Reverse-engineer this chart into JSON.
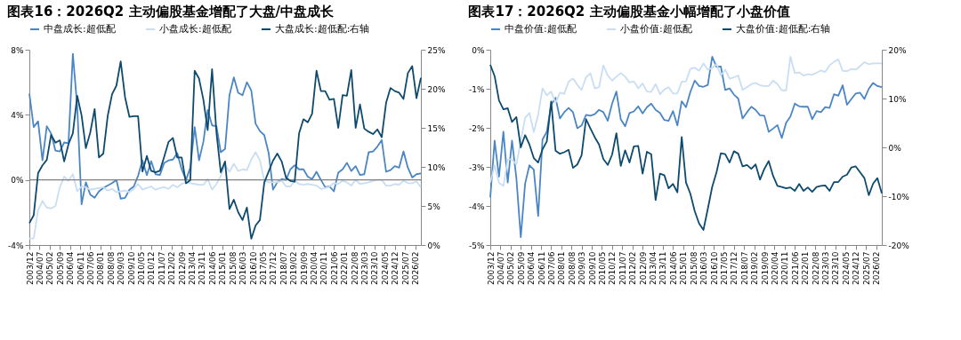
{
  "chart_data": [
    {
      "type": "line",
      "title": "图表16：2026Q2 主动偏股基金增配了大盘/中盘成长",
      "legend": "top",
      "x": [
        "2003-12",
        "2004-03",
        "2004-06",
        "2004-09",
        "2004-12",
        "2005-03",
        "2005-06",
        "2005-09",
        "2005-12",
        "2006-03",
        "2006-06",
        "2006-09",
        "2006-12",
        "2007-03",
        "2007-06",
        "2007-09",
        "2007-12",
        "2008-03",
        "2008-06",
        "2008-09",
        "2008-12",
        "2009-03",
        "2009-06",
        "2009-09",
        "2009-12",
        "2010-03",
        "2010-06",
        "2010-09",
        "2010-12",
        "2011-03",
        "2011-06",
        "2011-09",
        "2011-12",
        "2012-03",
        "2012-06",
        "2012-09",
        "2012-12",
        "2013-03",
        "2013-06",
        "2013-09",
        "2013-12",
        "2014-03",
        "2014-06",
        "2014-09",
        "2014-12",
        "2015-03",
        "2015-06",
        "2015-09",
        "2015-12",
        "2016-03",
        "2016-06",
        "2016-09",
        "2016-12",
        "2017-03",
        "2017-06",
        "2017-09",
        "2017-12",
        "2018-03",
        "2018-06",
        "2018-09",
        "2018-12",
        "2019-03",
        "2019-06",
        "2019-09",
        "2019-12",
        "2020-03",
        "2020-06",
        "2020-09",
        "2020-12",
        "2021-03",
        "2021-06",
        "2021-09",
        "2021-12",
        "2022-03",
        "2022-06",
        "2022-09",
        "2022-12",
        "2023-03",
        "2023-06",
        "2023-09",
        "2023-12",
        "2024-03",
        "2024-06",
        "2024-09",
        "2024-12",
        "2025-03",
        "2025-06",
        "2025-09",
        "2025-12",
        "2026-03",
        "2026-06"
      ],
      "xlim": [
        "2003-12",
        "2026-06"
      ],
      "xticks": [
        {
          "value": "2003-12",
          "label": "2003/12"
        },
        {
          "value": "2004-07",
          "label": "2004/07"
        },
        {
          "value": "2005-02",
          "label": "2005/02"
        },
        {
          "value": "2005-09",
          "label": "2005/09"
        },
        {
          "value": "2006-04",
          "label": "2006/04"
        },
        {
          "value": "2006-11",
          "label": "2006/11"
        },
        {
          "value": "2007-06",
          "label": "2007/06"
        },
        {
          "value": "2008-01",
          "label": "2008/01"
        },
        {
          "value": "2008-08",
          "label": "2008/08"
        },
        {
          "value": "2009-03",
          "label": "2009/03"
        },
        {
          "value": "2009-10",
          "label": "2009/10"
        },
        {
          "value": "2010-05",
          "label": "2010/05"
        },
        {
          "value": "2010-12",
          "label": "2010/12"
        },
        {
          "value": "2011-07",
          "label": "2011/07"
        },
        {
          "value": "2012-02",
          "label": "2012/02"
        },
        {
          "value": "2012-09",
          "label": "2012/09"
        },
        {
          "value": "2013-04",
          "label": "2013/04"
        },
        {
          "value": "2013-11",
          "label": "2013/11"
        },
        {
          "value": "2014-06",
          "label": "2014/06"
        },
        {
          "value": "2015-01",
          "label": "2015/01"
        },
        {
          "value": "2015-08",
          "label": "2015/08"
        },
        {
          "value": "2016-03",
          "label": "2016/03"
        },
        {
          "value": "2016-10",
          "label": "2016/10"
        },
        {
          "value": "2017-05",
          "label": "2017/05"
        },
        {
          "value": "2017-12",
          "label": "2017/12"
        },
        {
          "value": "2018-07",
          "label": "2018/07"
        },
        {
          "value": "2019-02",
          "label": "2019/02"
        },
        {
          "value": "2019-09",
          "label": "2019/09"
        },
        {
          "value": "2020-04",
          "label": "2020/04"
        },
        {
          "value": "2020-11",
          "label": "2020/11"
        },
        {
          "value": "2021-06",
          "label": "2021/06"
        },
        {
          "value": "2022-01",
          "label": "2022/01"
        },
        {
          "value": "2022-08",
          "label": "2022/08"
        },
        {
          "value": "2023-03",
          "label": "2023/03"
        },
        {
          "value": "2023-10",
          "label": "2023/10"
        },
        {
          "value": "2024-05",
          "label": "2024/05"
        },
        {
          "value": "2024-12",
          "label": "2024/12"
        },
        {
          "value": "2025-07",
          "label": "2025/07"
        },
        {
          "value": "2026-02",
          "label": "2026/02"
        }
      ],
      "ylim": [
        -4,
        8
      ],
      "yticks": [
        {
          "value": -4,
          "label": "-4%"
        },
        {
          "value": 0,
          "label": "0%"
        },
        {
          "value": 4,
          "label": "4%"
        },
        {
          "value": 8,
          "label": "8%"
        }
      ],
      "y2lim": [
        0,
        25
      ],
      "y2ticks": [
        {
          "value": 0,
          "label": "0%"
        },
        {
          "value": 5,
          "label": "5%"
        },
        {
          "value": 10,
          "label": "10%"
        },
        {
          "value": 15,
          "label": "15%"
        },
        {
          "value": 20,
          "label": "20%"
        },
        {
          "value": 25,
          "label": "25%"
        }
      ],
      "ref_lines": [
        {
          "axis": "y",
          "value": 0,
          "color": "#808080"
        }
      ],
      "series": [
        {
          "name": "中盘成长:超低配",
          "color": "#4a86c5",
          "values": [
            5.3,
            3.25,
            3.6,
            1.2,
            3.3,
            2.85,
            1.8,
            1.75,
            2.3,
            2.25,
            7.75,
            4.5,
            -1.5,
            -0.15,
            -0.9,
            -1.1,
            -0.7,
            -0.5,
            -0.35,
            -0.2,
            0.0,
            -1.15,
            -1.1,
            -0.6,
            -0.4,
            0.25,
            1.2,
            0.3,
            1.15,
            0.35,
            0.3,
            1.05,
            1.2,
            1.25,
            1.65,
            0.65,
            0.0,
            0.75,
            3.25,
            1.2,
            2.35,
            4.3,
            3.35,
            3.3,
            1.7,
            1.9,
            5.2,
            6.3,
            5.35,
            5.2,
            6.0,
            5.5,
            3.45,
            3.0,
            2.75,
            1.65,
            -0.6,
            -0.15,
            0.05,
            0.0,
            0.65,
            0.9,
            0.65,
            0.65,
            0.2,
            0.05,
            0.5,
            0.0,
            -0.45,
            -0.4,
            -0.7,
            0.45,
            0.65,
            1.05,
            0.55,
            0.85,
            0.3,
            0.35,
            1.7,
            1.75,
            2.05,
            2.45,
            0.5,
            0.6,
            0.85,
            0.75,
            1.75,
            0.75,
            0.15,
            0.35,
            0.4
          ]
        },
        {
          "name": "小盘成长:超低配",
          "color": "#c9def2",
          "values": [
            -3.6,
            -3.6,
            -1.85,
            -1.3,
            -1.7,
            -1.75,
            -1.6,
            -0.45,
            0.2,
            -0.05,
            0.35,
            -0.7,
            -0.4,
            -0.45,
            -0.6,
            -0.55,
            -0.5,
            -0.45,
            -0.65,
            -0.55,
            -0.75,
            -0.7,
            -0.65,
            -0.75,
            -0.55,
            -0.25,
            -0.6,
            -0.5,
            -0.4,
            -0.6,
            -0.5,
            -0.45,
            -0.55,
            -0.3,
            -0.45,
            -0.25,
            -0.15,
            -0.2,
            -0.25,
            -0.3,
            -0.3,
            0.05,
            -0.6,
            -0.25,
            0.25,
            0.9,
            0.5,
            1.0,
            0.55,
            0.65,
            0.6,
            1.25,
            1.7,
            1.2,
            -0.05,
            -0.15,
            -0.15,
            -0.15,
            -0.05,
            -0.4,
            -0.4,
            -0.05,
            -0.25,
            -0.3,
            -0.25,
            -0.3,
            -0.35,
            -0.55,
            -0.5,
            -0.4,
            -0.2,
            -0.25,
            -0.05,
            -0.15,
            -0.35,
            0.0,
            -0.25,
            -0.2,
            -0.15,
            -0.05,
            0.0,
            0.0,
            -0.35,
            -0.35,
            -0.25,
            -0.3,
            -0.05,
            -0.2,
            -0.2,
            -0.1,
            -0.45
          ]
        },
        {
          "name": "大盘成长:超低配:右轴",
          "color": "#0d4a6e",
          "axis": "y2",
          "values": [
            2.8,
            3.8,
            9.2,
            10.2,
            10.9,
            14.1,
            13.1,
            13.4,
            10.7,
            12.9,
            14.3,
            19.1,
            16.6,
            12.4,
            14.4,
            17.4,
            11.2,
            11.7,
            16.5,
            19.3,
            20.4,
            23.5,
            18.9,
            16.4,
            16.5,
            16.5,
            9.4,
            11.4,
            9.5,
            9.3,
            9.5,
            11.3,
            13.2,
            13.7,
            11.2,
            11.2,
            7.9,
            8.3,
            22.3,
            21.3,
            18.6,
            14.7,
            22.5,
            14.4,
            9.3,
            10.7,
            4.6,
            5.8,
            4.2,
            3.2,
            4.8,
            0.8,
            2.5,
            3.2,
            8.0,
            9.4,
            10.8,
            11.7,
            10.7,
            8.6,
            8.2,
            8.1,
            14.3,
            16.1,
            15.7,
            16.8,
            22.3,
            19.7,
            19.7,
            18.6,
            18.7,
            15.0,
            19.2,
            19.1,
            22.4,
            15.0,
            18.0,
            14.9,
            14.5,
            14.2,
            14.8,
            13.8,
            18.2,
            20.1,
            19.7,
            19.5,
            18.7,
            22.0,
            22.9,
            18.8,
            21.4
          ]
        }
      ]
    },
    {
      "type": "line",
      "title": "图表17：2026Q2 主动偏股基金小幅增配了小盘价值",
      "legend": "top",
      "x": [
        "2003-12",
        "2004-03",
        "2004-06",
        "2004-09",
        "2004-12",
        "2005-03",
        "2005-06",
        "2005-09",
        "2005-12",
        "2006-03",
        "2006-06",
        "2006-09",
        "2006-12",
        "2007-03",
        "2007-06",
        "2007-09",
        "2007-12",
        "2008-03",
        "2008-06",
        "2008-09",
        "2008-12",
        "2009-03",
        "2009-06",
        "2009-09",
        "2009-12",
        "2010-03",
        "2010-06",
        "2010-09",
        "2010-12",
        "2011-03",
        "2011-06",
        "2011-09",
        "2011-12",
        "2012-03",
        "2012-06",
        "2012-09",
        "2012-12",
        "2013-03",
        "2013-06",
        "2013-09",
        "2013-12",
        "2014-03",
        "2014-06",
        "2014-09",
        "2014-12",
        "2015-03",
        "2015-06",
        "2015-09",
        "2015-12",
        "2016-03",
        "2016-06",
        "2016-09",
        "2016-12",
        "2017-03",
        "2017-06",
        "2017-09",
        "2017-12",
        "2018-03",
        "2018-06",
        "2018-09",
        "2018-12",
        "2019-03",
        "2019-06",
        "2019-09",
        "2019-12",
        "2020-03",
        "2020-06",
        "2020-09",
        "2020-12",
        "2021-03",
        "2021-06",
        "2021-09",
        "2021-12",
        "2022-03",
        "2022-06",
        "2022-09",
        "2022-12",
        "2023-03",
        "2023-06",
        "2023-09",
        "2023-12",
        "2024-03",
        "2024-06",
        "2024-09",
        "2024-12",
        "2025-03",
        "2025-06",
        "2025-09",
        "2025-12",
        "2026-03",
        "2026-06"
      ],
      "xlim": [
        "2003-12",
        "2026-06"
      ],
      "xticks": [
        {
          "value": "2003-12",
          "label": "2003/12"
        },
        {
          "value": "2004-07",
          "label": "2004/07"
        },
        {
          "value": "2005-02",
          "label": "2005/02"
        },
        {
          "value": "2005-09",
          "label": "2005/09"
        },
        {
          "value": "2006-04",
          "label": "2006/04"
        },
        {
          "value": "2006-11",
          "label": "2006/11"
        },
        {
          "value": "2007-06",
          "label": "2007/06"
        },
        {
          "value": "2008-01",
          "label": "2008/01"
        },
        {
          "value": "2008-08",
          "label": "2008/08"
        },
        {
          "value": "2009-03",
          "label": "2009/03"
        },
        {
          "value": "2009-10",
          "label": "2009/10"
        },
        {
          "value": "2010-05",
          "label": "2010/05"
        },
        {
          "value": "2010-12",
          "label": "2010/12"
        },
        {
          "value": "2011-07",
          "label": "2011/07"
        },
        {
          "value": "2012-02",
          "label": "2012/02"
        },
        {
          "value": "2012-09",
          "label": "2012/09"
        },
        {
          "value": "2013-04",
          "label": "2013/04"
        },
        {
          "value": "2013-11",
          "label": "2013/11"
        },
        {
          "value": "2014-06",
          "label": "2014/06"
        },
        {
          "value": "2015-01",
          "label": "2015/01"
        },
        {
          "value": "2015-08",
          "label": "2015/08"
        },
        {
          "value": "2016-03",
          "label": "2016/03"
        },
        {
          "value": "2016-10",
          "label": "2016/10"
        },
        {
          "value": "2017-05",
          "label": "2017/05"
        },
        {
          "value": "2017-12",
          "label": "2017/12"
        },
        {
          "value": "2018-07",
          "label": "2018/07"
        },
        {
          "value": "2019-02",
          "label": "2019/02"
        },
        {
          "value": "2019-09",
          "label": "2019/09"
        },
        {
          "value": "2020-04",
          "label": "2020/04"
        },
        {
          "value": "2020-11",
          "label": "2020/11"
        },
        {
          "value": "2021-06",
          "label": "2021/06"
        },
        {
          "value": "2022-01",
          "label": "2022/01"
        },
        {
          "value": "2022-08",
          "label": "2022/08"
        },
        {
          "value": "2023-03",
          "label": "2023/03"
        },
        {
          "value": "2023-10",
          "label": "2023/10"
        },
        {
          "value": "2024-05",
          "label": "2024/05"
        },
        {
          "value": "2024-12",
          "label": "2024/12"
        },
        {
          "value": "2025-07",
          "label": "2025/07"
        },
        {
          "value": "2026-02",
          "label": "2026/02"
        }
      ],
      "ylim": [
        -5,
        0
      ],
      "yticks": [
        {
          "value": -5,
          "label": "-5%"
        },
        {
          "value": -4,
          "label": "-4%"
        },
        {
          "value": -3,
          "label": "-3%"
        },
        {
          "value": -2,
          "label": "-2%"
        },
        {
          "value": -1,
          "label": "-1%"
        },
        {
          "value": 0,
          "label": "0%"
        }
      ],
      "y2lim": [
        -20,
        20
      ],
      "y2ticks": [
        {
          "value": -20,
          "label": "-20%"
        },
        {
          "value": -10,
          "label": "-10%"
        },
        {
          "value": 0,
          "label": "0%"
        },
        {
          "value": 10,
          "label": "10%"
        },
        {
          "value": 20,
          "label": "20%"
        }
      ],
      "series": [
        {
          "name": "中盘价值:超低配",
          "color": "#4a86c5",
          "values": [
            -3.78,
            -2.33,
            -3.25,
            -2.1,
            -3.4,
            -2.33,
            -3.29,
            -4.8,
            -3.43,
            -2.96,
            -3.07,
            -4.26,
            -2.3,
            -2.1,
            -1.41,
            -1.23,
            -1.76,
            -1.6,
            -1.49,
            -1.6,
            -2.01,
            -1.94,
            -1.67,
            -1.69,
            -1.65,
            -1.54,
            -1.6,
            -1.82,
            -1.38,
            -1.07,
            -1.78,
            -1.96,
            -1.62,
            -1.58,
            -1.45,
            -1.63,
            -1.47,
            -1.38,
            -1.54,
            -1.62,
            -1.8,
            -1.82,
            -1.57,
            -1.94,
            -1.32,
            -1.47,
            -1.08,
            -0.79,
            -0.93,
            -0.95,
            -0.9,
            -0.18,
            -0.44,
            -0.43,
            -1.03,
            -0.99,
            -1.15,
            -1.25,
            -1.76,
            -1.6,
            -1.46,
            -1.54,
            -1.68,
            -1.69,
            -2.1,
            -2.02,
            -1.93,
            -2.26,
            -1.87,
            -1.71,
            -1.38,
            -1.45,
            -1.46,
            -1.46,
            -1.78,
            -1.57,
            -1.6,
            -1.47,
            -1.49,
            -1.14,
            -1.18,
            -0.91,
            -1.41,
            -1.26,
            -1.12,
            -1.1,
            -1.26,
            -1.0,
            -0.85,
            -0.93,
            -0.96
          ]
        },
        {
          "name": "小盘价值:超低配",
          "color": "#c9def2",
          "values": [
            -3.4,
            -2.96,
            -3.41,
            -3.49,
            -2.81,
            -2.81,
            -2.94,
            -2.35,
            -1.74,
            -1.62,
            -2.11,
            -1.67,
            -0.99,
            -1.17,
            -1.07,
            -1.36,
            -1.1,
            -1.13,
            -0.82,
            -0.74,
            -0.9,
            -1.03,
            -0.71,
            -0.6,
            -0.99,
            -0.96,
            -0.4,
            -0.66,
            -0.79,
            -0.69,
            -0.6,
            -0.69,
            -0.84,
            -0.81,
            -0.99,
            -0.86,
            -1.07,
            -1.08,
            -0.88,
            -1.14,
            -1.02,
            -0.96,
            -1.12,
            -1.12,
            -0.82,
            -0.81,
            -0.49,
            -0.46,
            -0.54,
            -0.35,
            -0.51,
            -0.47,
            -0.37,
            -0.66,
            -0.51,
            -0.74,
            -0.71,
            -0.66,
            -1.03,
            -0.96,
            -0.88,
            -0.85,
            -0.91,
            -0.93,
            -0.93,
            -0.79,
            -0.88,
            -1.04,
            -1.04,
            -0.18,
            -0.6,
            -0.58,
            -0.66,
            -0.63,
            -0.64,
            -0.59,
            -0.53,
            -0.57,
            -0.4,
            -0.31,
            -0.25,
            -0.54,
            -0.55,
            -0.49,
            -0.51,
            -0.42,
            -0.32,
            -0.37,
            -0.35,
            -0.35,
            -0.35
          ]
        },
        {
          "name": "大盘价值:超低配:右轴",
          "color": "#0d4a6e",
          "axis": "y2",
          "values": [
            16.9,
            14.6,
            9.6,
            7.8,
            8.0,
            5.2,
            6.2,
            0.0,
            2.5,
            0.6,
            -2.2,
            -3.1,
            -0.4,
            1.2,
            9.4,
            -0.7,
            -1.3,
            -1.0,
            -0.5,
            -4.2,
            -3.5,
            -1.6,
            5.8,
            3.9,
            2.1,
            0.6,
            -2.4,
            -3.6,
            -1.5,
            2.9,
            -3.8,
            -0.6,
            -3.1,
            0.2,
            0.3,
            -5.4,
            -0.9,
            -1.4,
            -10.8,
            -5.4,
            -5.7,
            -8.4,
            -7.5,
            -9.2,
            2.1,
            -7.2,
            -9.5,
            -13.1,
            -15.6,
            -16.9,
            -12.6,
            -8.1,
            -5.1,
            -1.2,
            -1.4,
            -3.1,
            -0.8,
            -1.3,
            -3.9,
            -3.6,
            -4.4,
            -3.5,
            -6.6,
            -4.4,
            -2.8,
            -5.8,
            -7.9,
            -8.1,
            -8.4,
            -8.2,
            -8.9,
            -7.5,
            -8.9,
            -8.2,
            -9.1,
            -8.1,
            -7.9,
            -7.8,
            -8.9,
            -7.1,
            -7.1,
            -6.0,
            -5.6,
            -4.1,
            -3.9,
            -5.1,
            -6.3,
            -9.8,
            -7.4,
            -6.3,
            -9.4
          ]
        }
      ]
    }
  ]
}
